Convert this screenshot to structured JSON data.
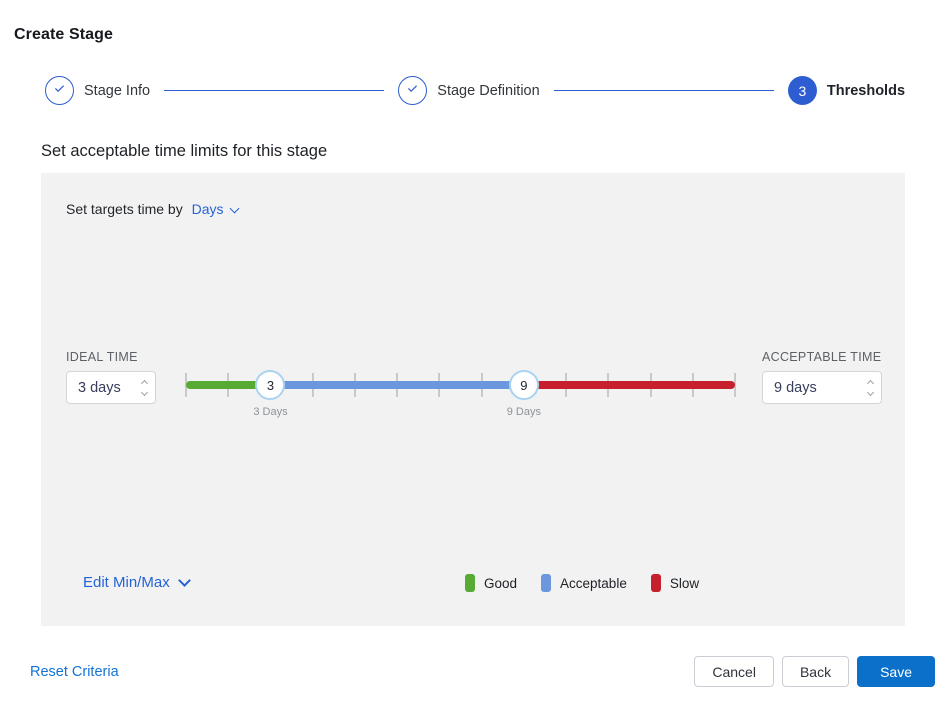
{
  "title": "Create Stage",
  "stepper": {
    "steps": [
      {
        "label": "Stage Info",
        "state": "complete"
      },
      {
        "label": "Stage Definition",
        "state": "complete"
      },
      {
        "label": "Thresholds",
        "state": "active",
        "number": "3"
      }
    ]
  },
  "section_heading": "Set acceptable time limits for this stage",
  "panel": {
    "targets_prefix": "Set targets time by",
    "unit_value": "Days",
    "ideal": {
      "label": "IDEAL TIME",
      "value": "3 days"
    },
    "acceptable": {
      "label": "ACCEPTABLE TIME",
      "value": "9 days"
    },
    "slider": {
      "min_day": 1,
      "max_day": 14,
      "ideal_day": 3,
      "acceptable_day": 9,
      "handle_ideal_text": "3",
      "handle_acceptable_text": "9",
      "ideal_label": "3 Days",
      "acceptable_label": "9 Days",
      "colors": {
        "good": "#57ab34",
        "acceptable": "#6b97de",
        "slow": "#c6202c"
      }
    },
    "edit_minmax_label": "Edit Min/Max",
    "legend": [
      {
        "label": "Good",
        "color": "#57ab34"
      },
      {
        "label": "Acceptable",
        "color": "#6b97de"
      },
      {
        "label": "Slow",
        "color": "#c6202c"
      }
    ]
  },
  "footer": {
    "reset_label": "Reset Criteria",
    "cancel_label": "Cancel",
    "back_label": "Back",
    "save_label": "Save"
  },
  "colors": {
    "stepper_blue": "#2d5dd0",
    "link_blue": "#2563d6",
    "reset_blue": "#1273d4",
    "save_blue": "#0b70c9",
    "panel_bg": "#f2f2f2",
    "handle_ring": "#a9d3f1",
    "tick_gray": "#c9c9c9"
  }
}
